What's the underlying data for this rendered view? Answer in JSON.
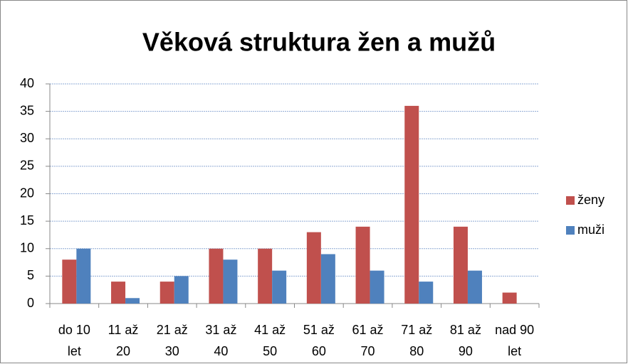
{
  "chart_data": {
    "type": "bar",
    "title": "Věková struktura žen a mužů",
    "categories": [
      "do 10 let",
      "11 až 20",
      "21 až 30",
      "31 až 40",
      "41 až 50",
      "51 až 60",
      "61 až 70",
      "71 až 80",
      "81 až 90",
      "nad 90 let"
    ],
    "series": [
      {
        "name": "ženy",
        "color": "#c0504d",
        "values": [
          8,
          4,
          4,
          10,
          10,
          13,
          14,
          36,
          14,
          2
        ]
      },
      {
        "name": "muži",
        "color": "#4f81bd",
        "values": [
          10,
          1,
          5,
          8,
          6,
          9,
          6,
          4,
          6,
          0
        ]
      }
    ],
    "ylim": [
      0,
      40
    ],
    "yticks": [
      0,
      5,
      10,
      15,
      20,
      25,
      30,
      35,
      40
    ],
    "grid": true,
    "legend": "right"
  }
}
